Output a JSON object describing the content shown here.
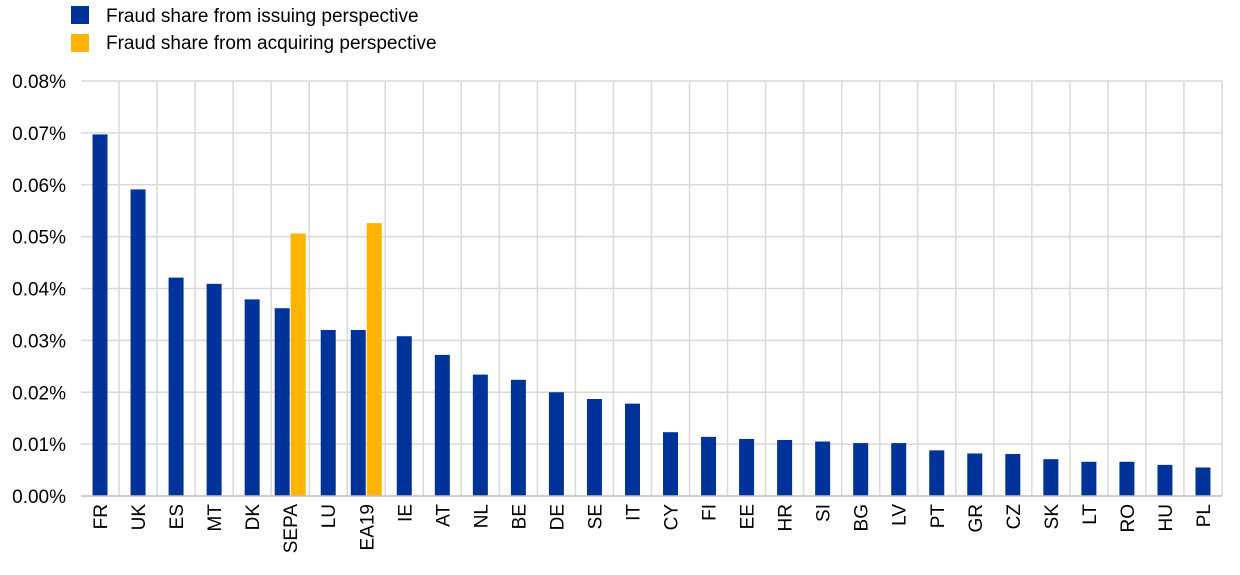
{
  "chart_data": {
    "type": "bar",
    "categories": [
      "FR",
      "UK",
      "ES",
      "MT",
      "DK",
      "SEPA",
      "LU",
      "EA19",
      "IE",
      "AT",
      "NL",
      "BE",
      "DE",
      "SE",
      "IT",
      "CY",
      "FI",
      "EE",
      "HR",
      "SI",
      "BG",
      "LV",
      "PT",
      "GR",
      "CZ",
      "SK",
      "LT",
      "RO",
      "HU",
      "PL"
    ],
    "series": [
      {
        "name": "Fraud share from issuing perspective",
        "color": "#003399",
        "values": [
          0.0697,
          0.0591,
          0.0421,
          0.0409,
          0.0379,
          0.0362,
          0.032,
          0.032,
          0.0308,
          0.0272,
          0.0234,
          0.0224,
          0.02,
          0.0187,
          0.0178,
          0.0123,
          0.0114,
          0.011,
          0.0108,
          0.0105,
          0.0102,
          0.0102,
          0.0088,
          0.0082,
          0.0081,
          0.0071,
          0.0066,
          0.0066,
          0.006,
          0.0055
        ]
      },
      {
        "name": "Fraud share from acquiring perspective",
        "color": "#FFB400",
        "values": [
          null,
          null,
          null,
          null,
          null,
          0.0506,
          null,
          0.0526,
          null,
          null,
          null,
          null,
          null,
          null,
          null,
          null,
          null,
          null,
          null,
          null,
          null,
          null,
          null,
          null,
          null,
          null,
          null,
          null,
          null,
          null
        ]
      }
    ],
    "ylim": [
      0,
      0.08
    ],
    "yticks": [
      "0.00%",
      "0.01%",
      "0.02%",
      "0.03%",
      "0.04%",
      "0.05%",
      "0.06%",
      "0.07%",
      "0.08%"
    ],
    "grid": true,
    "legend_position": "top-left"
  }
}
